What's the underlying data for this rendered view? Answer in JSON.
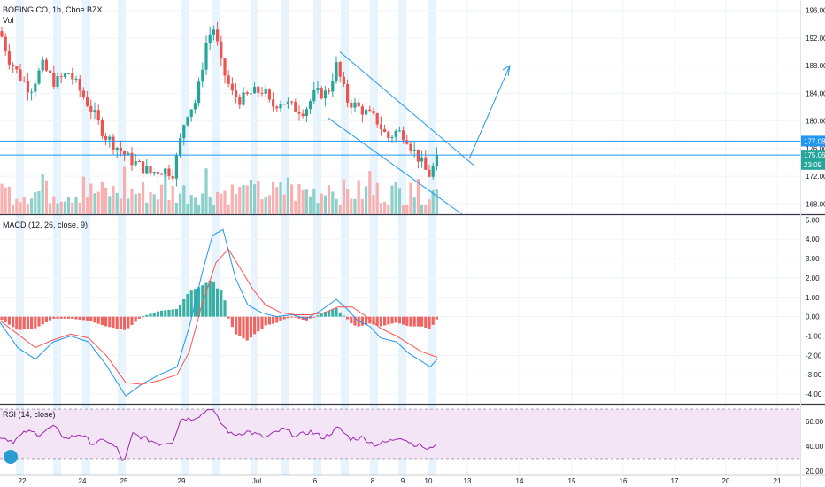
{
  "chart_data": {
    "type": "candlestick",
    "symbol_line": "BOEING CO, 1h, Cboe BZX",
    "volume_label": "Vol",
    "price_axis_ticks": [
      "196.00",
      "192.00",
      "188.00",
      "184.00",
      "180.00",
      "176.00",
      "172.00",
      "168.00"
    ],
    "price_ylim": [
      166.5,
      197.5
    ],
    "price_badges": [
      {
        "text": "177.08",
        "color": "#2196f3",
        "value": 177.08
      },
      {
        "text": "175.06",
        "color": "#26a69a",
        "value": 175.06
      },
      {
        "text": "23:09",
        "color": "#26a69a",
        "value": 173.7
      }
    ],
    "horizontal_levels": [
      177.08,
      175.06
    ],
    "x_ticks": [
      "22",
      "24",
      "25",
      "29",
      "Jul",
      "6",
      "8",
      "9",
      "10",
      "13",
      "14",
      "15",
      "16",
      "17",
      "20",
      "21"
    ],
    "macd": {
      "label": "MACD (12, 26, close, 9)",
      "axis_ticks": [
        "5.00",
        "4.00",
        "3.00",
        "2.00",
        "1.00",
        "0.00",
        "-1.00",
        "-2.00",
        "-3.00",
        "-4.00"
      ],
      "ylim": [
        -4.5,
        5.2
      ],
      "macd_color": "#2196f3",
      "signal_color": "#ff5252"
    },
    "rsi": {
      "label": "RSI (14, close)",
      "axis_ticks": [
        "60.00",
        "40.00",
        "20.00"
      ],
      "ylim": [
        17,
        73
      ],
      "band": [
        30,
        70
      ],
      "line_color": "#9c27b0",
      "band_color": "#f3e5f5"
    },
    "colors": {
      "up": "#26a69a",
      "down": "#ef5350",
      "session": "#e3f2fd",
      "trend": "#2196f3"
    }
  }
}
